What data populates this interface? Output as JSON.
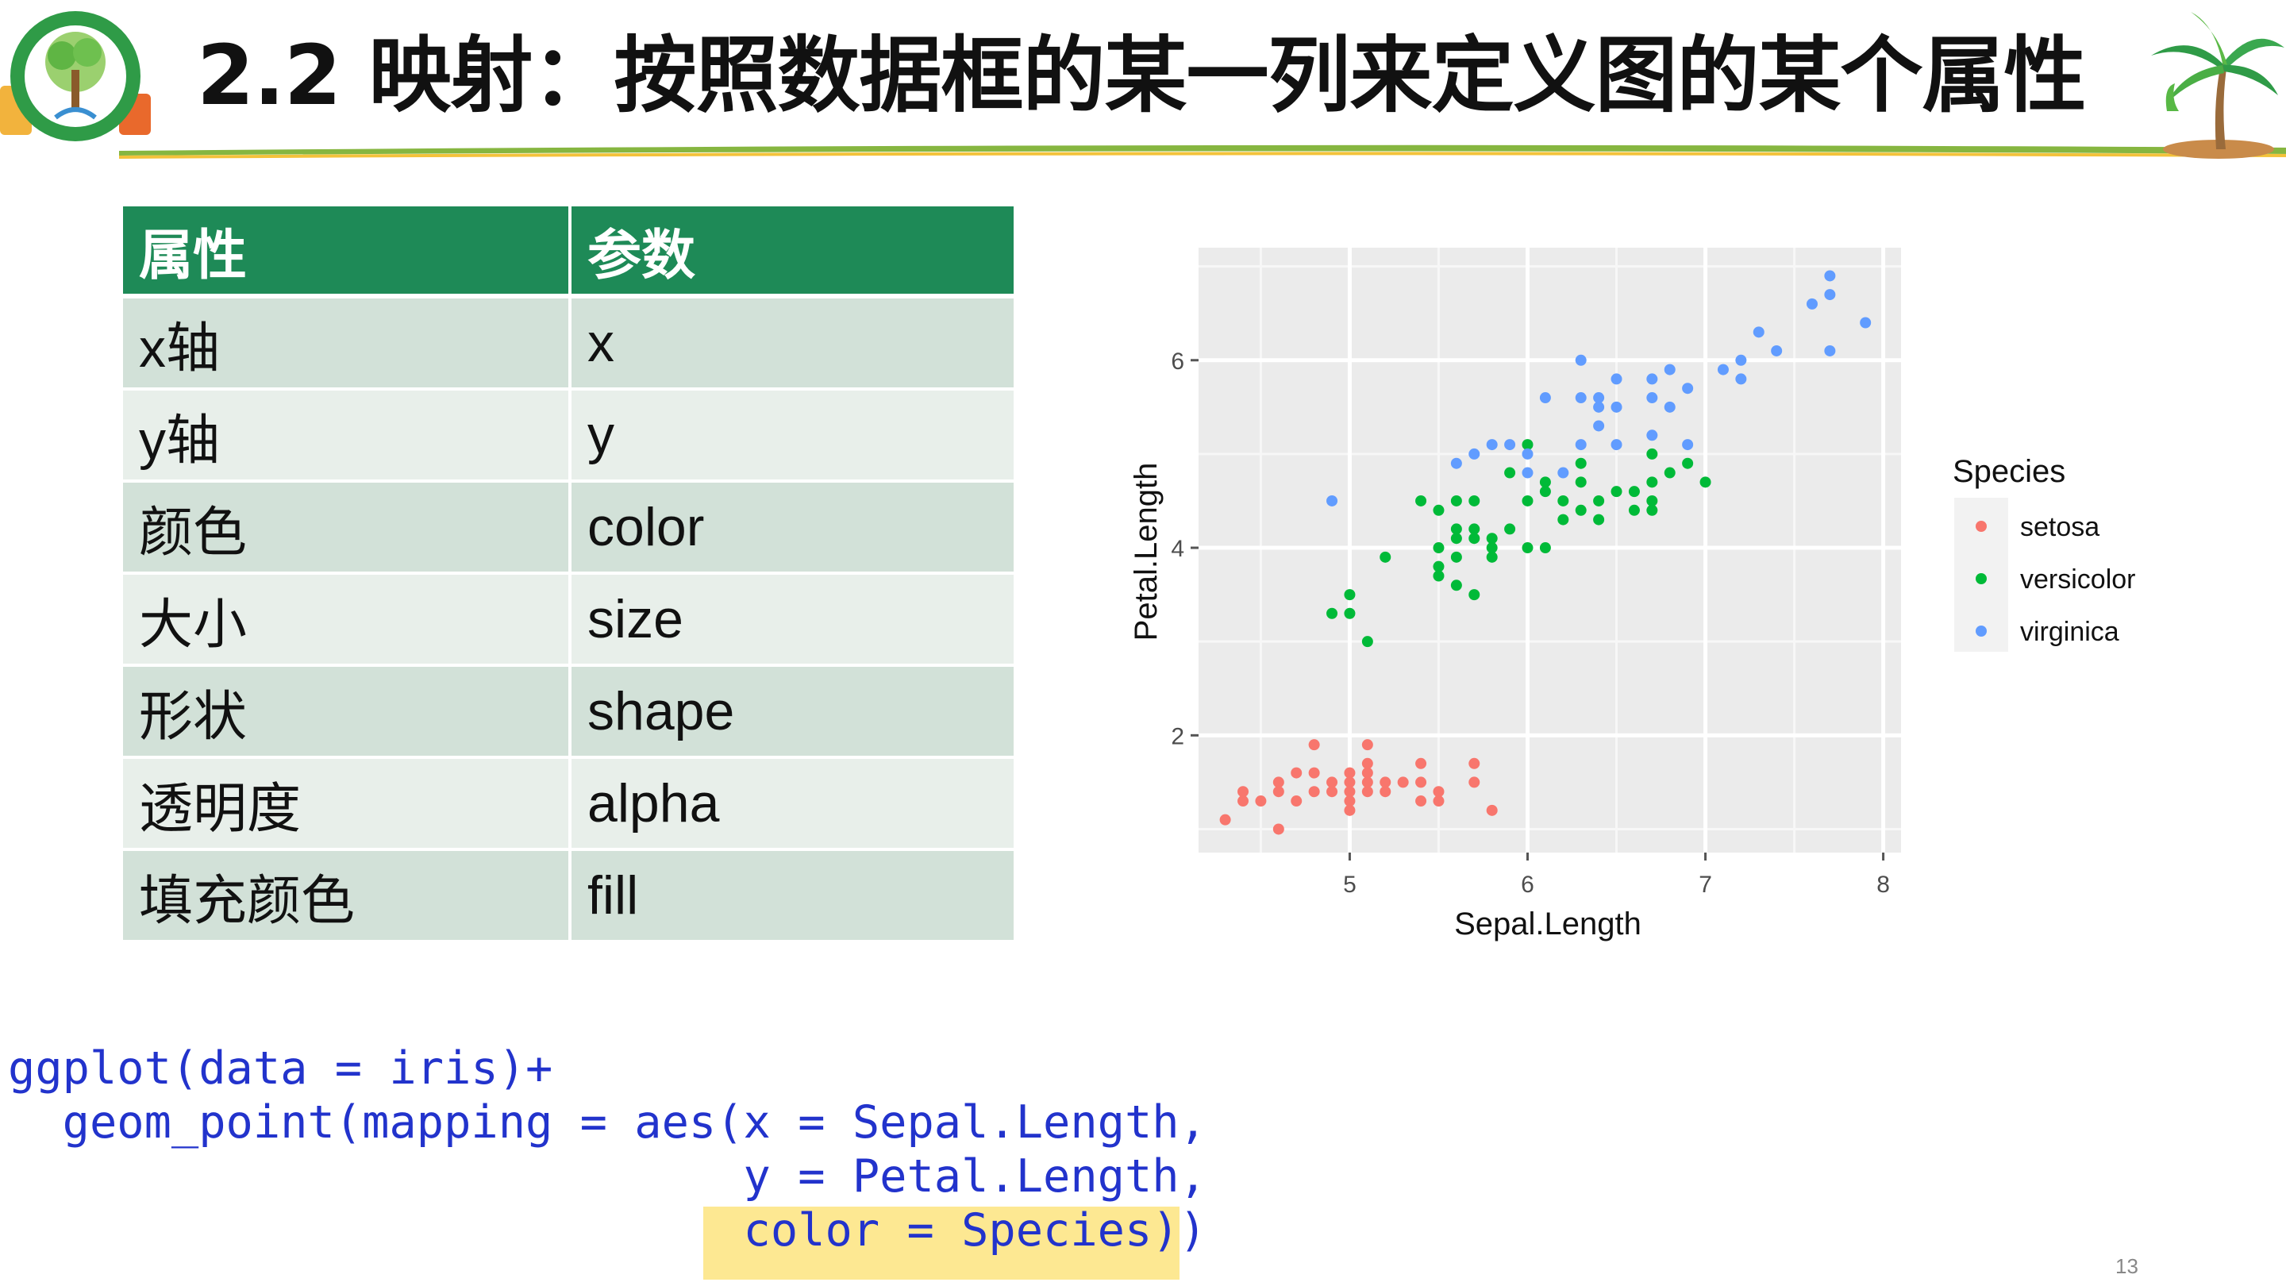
{
  "header": {
    "title": "2.2 映射：按照数据框的某一列来定义图的某个属性"
  },
  "table": {
    "headers": [
      "属性",
      "参数"
    ],
    "rows": [
      [
        "x轴",
        "x"
      ],
      [
        "y轴",
        "y"
      ],
      [
        "颜色",
        "color"
      ],
      [
        "大小",
        "size"
      ],
      [
        "形状",
        "shape"
      ],
      [
        "透明度",
        "alpha"
      ],
      [
        "填充颜色",
        "fill"
      ]
    ]
  },
  "chart_data": {
    "type": "scatter",
    "xlabel": "Sepal.Length",
    "ylabel": "Petal.Length",
    "xlim": [
      4.15,
      8.1
    ],
    "ylim": [
      0.75,
      7.2
    ],
    "x_ticks": [
      5,
      6,
      7,
      8
    ],
    "y_ticks": [
      2,
      4,
      6
    ],
    "grid": true,
    "legend": {
      "title": "Species",
      "position": "right"
    },
    "series": [
      {
        "name": "setosa",
        "color": "#f8766d",
        "points": [
          [
            4.3,
            1.1
          ],
          [
            4.4,
            1.3
          ],
          [
            4.4,
            1.4
          ],
          [
            4.5,
            1.3
          ],
          [
            4.6,
            1.0
          ],
          [
            4.6,
            1.4
          ],
          [
            4.6,
            1.5
          ],
          [
            4.7,
            1.3
          ],
          [
            4.7,
            1.6
          ],
          [
            4.8,
            1.4
          ],
          [
            4.8,
            1.6
          ],
          [
            4.8,
            1.9
          ],
          [
            4.9,
            1.4
          ],
          [
            4.9,
            1.5
          ],
          [
            5.0,
            1.2
          ],
          [
            5.0,
            1.3
          ],
          [
            5.0,
            1.4
          ],
          [
            5.0,
            1.5
          ],
          [
            5.0,
            1.6
          ],
          [
            5.1,
            1.4
          ],
          [
            5.1,
            1.5
          ],
          [
            5.1,
            1.6
          ],
          [
            5.1,
            1.7
          ],
          [
            5.1,
            1.9
          ],
          [
            5.2,
            1.4
          ],
          [
            5.2,
            1.5
          ],
          [
            5.3,
            1.5
          ],
          [
            5.4,
            1.3
          ],
          [
            5.4,
            1.5
          ],
          [
            5.4,
            1.7
          ],
          [
            5.5,
            1.3
          ],
          [
            5.5,
            1.4
          ],
          [
            5.7,
            1.5
          ],
          [
            5.7,
            1.7
          ],
          [
            5.8,
            1.2
          ]
        ]
      },
      {
        "name": "versicolor",
        "color": "#00ba38",
        "points": [
          [
            4.9,
            3.3
          ],
          [
            5.0,
            3.3
          ],
          [
            5.0,
            3.5
          ],
          [
            5.1,
            3.0
          ],
          [
            5.2,
            3.9
          ],
          [
            5.4,
            4.5
          ],
          [
            5.5,
            3.7
          ],
          [
            5.5,
            3.8
          ],
          [
            5.5,
            4.0
          ],
          [
            5.5,
            4.4
          ],
          [
            5.6,
            3.6
          ],
          [
            5.6,
            3.9
          ],
          [
            5.6,
            4.1
          ],
          [
            5.6,
            4.2
          ],
          [
            5.6,
            4.5
          ],
          [
            5.7,
            3.5
          ],
          [
            5.7,
            4.1
          ],
          [
            5.7,
            4.2
          ],
          [
            5.7,
            4.5
          ],
          [
            5.8,
            3.9
          ],
          [
            5.8,
            4.0
          ],
          [
            5.8,
            4.1
          ],
          [
            5.9,
            4.2
          ],
          [
            5.9,
            4.8
          ],
          [
            6.0,
            4.0
          ],
          [
            6.0,
            4.5
          ],
          [
            6.0,
            5.1
          ],
          [
            6.1,
            4.0
          ],
          [
            6.1,
            4.6
          ],
          [
            6.1,
            4.7
          ],
          [
            6.2,
            4.3
          ],
          [
            6.2,
            4.5
          ],
          [
            6.3,
            4.4
          ],
          [
            6.3,
            4.7
          ],
          [
            6.3,
            4.9
          ],
          [
            6.4,
            4.3
          ],
          [
            6.4,
            4.5
          ],
          [
            6.5,
            4.6
          ],
          [
            6.6,
            4.4
          ],
          [
            6.6,
            4.6
          ],
          [
            6.7,
            4.4
          ],
          [
            6.7,
            4.5
          ],
          [
            6.7,
            4.7
          ],
          [
            6.7,
            5.0
          ],
          [
            6.8,
            4.8
          ],
          [
            6.9,
            4.9
          ],
          [
            7.0,
            4.7
          ]
        ]
      },
      {
        "name": "virginica",
        "color": "#619cff",
        "points": [
          [
            4.9,
            4.5
          ],
          [
            5.6,
            4.9
          ],
          [
            5.7,
            5.0
          ],
          [
            5.8,
            5.1
          ],
          [
            5.9,
            5.1
          ],
          [
            6.0,
            4.8
          ],
          [
            6.0,
            5.0
          ],
          [
            6.1,
            5.6
          ],
          [
            6.2,
            4.8
          ],
          [
            6.3,
            5.1
          ],
          [
            6.3,
            5.6
          ],
          [
            6.3,
            6.0
          ],
          [
            6.4,
            5.3
          ],
          [
            6.4,
            5.5
          ],
          [
            6.4,
            5.6
          ],
          [
            6.5,
            5.1
          ],
          [
            6.5,
            5.5
          ],
          [
            6.5,
            5.8
          ],
          [
            6.7,
            5.2
          ],
          [
            6.7,
            5.6
          ],
          [
            6.7,
            5.8
          ],
          [
            6.8,
            5.5
          ],
          [
            6.8,
            5.9
          ],
          [
            6.9,
            5.1
          ],
          [
            6.9,
            5.7
          ],
          [
            7.1,
            5.9
          ],
          [
            7.2,
            5.8
          ],
          [
            7.2,
            6.0
          ],
          [
            7.3,
            6.3
          ],
          [
            7.4,
            6.1
          ],
          [
            7.6,
            6.6
          ],
          [
            7.7,
            6.1
          ],
          [
            7.7,
            6.7
          ],
          [
            7.7,
            6.9
          ],
          [
            7.9,
            6.4
          ]
        ]
      }
    ]
  },
  "code": {
    "line1": "ggplot(data = iris)+",
    "line2": "  geom_point(mapping = aes(x = Sepal.Length,",
    "line3": "                           y = Petal.Length,",
    "line4": "                           color = Species))"
  },
  "page_number": "13"
}
